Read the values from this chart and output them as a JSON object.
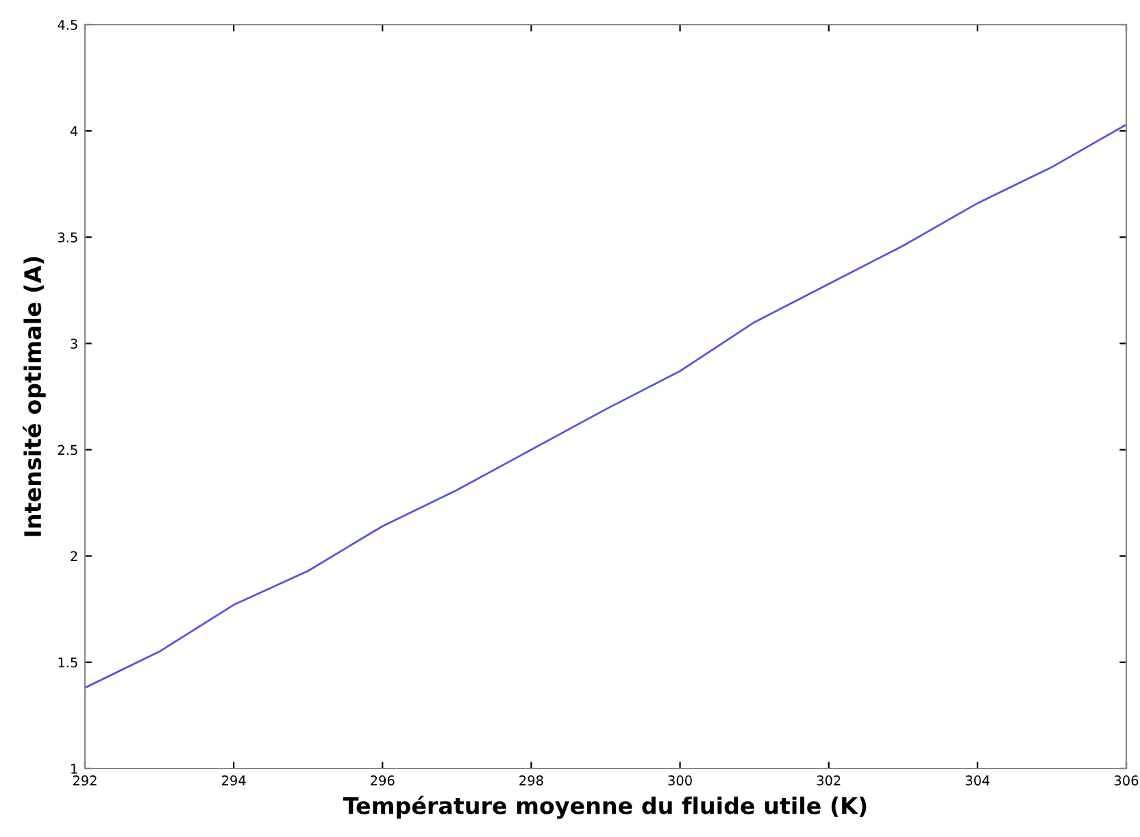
{
  "chart_data": {
    "type": "line",
    "xlabel": "Température moyenne du fluide utile (K)",
    "ylabel": "Intensité optimale (A)",
    "x": [
      292,
      293,
      294,
      295,
      296,
      297,
      298,
      299,
      300,
      301,
      302,
      303,
      304,
      305,
      306
    ],
    "series": [
      {
        "color": "#5555dd",
        "values": [
          1.38,
          1.55,
          1.77,
          1.93,
          2.14,
          2.31,
          2.5,
          2.69,
          2.87,
          3.1,
          3.28,
          3.46,
          3.66,
          3.83,
          4.03
        ]
      }
    ],
    "xlim": [
      292,
      306
    ],
    "ylim": [
      1,
      4.5
    ],
    "xticks": [
      292,
      294,
      296,
      298,
      300,
      302,
      304,
      306
    ],
    "yticks": [
      1,
      1.5,
      2,
      2.5,
      3,
      3.5,
      4,
      4.5
    ],
    "grid": false
  }
}
